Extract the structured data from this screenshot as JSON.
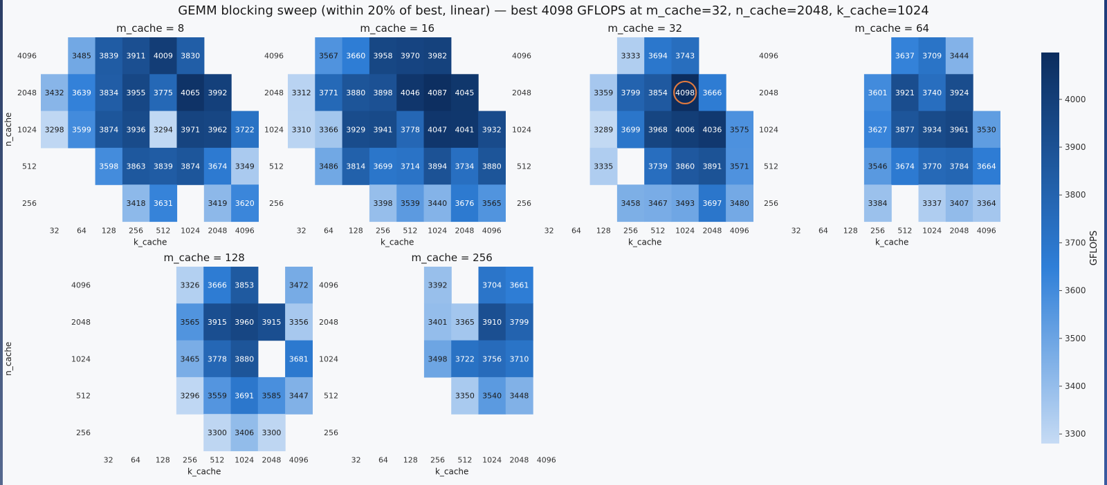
{
  "chart_data": {
    "type": "heatmap",
    "title": "GEMM blocking sweep (within 20% of best, linear) — best 4098 GFLOPS at m_cache=32, n_cache=2048, k_cache=1024",
    "xlabel": "k_cache",
    "ylabel": "n_cache",
    "k_values": [
      "32",
      "64",
      "128",
      "256",
      "512",
      "1024",
      "2048",
      "4096"
    ],
    "n_values": [
      "4096",
      "2048",
      "1024",
      "512",
      "256"
    ],
    "colorbar": {
      "label": "GFLOPS",
      "range": [
        3280,
        4098
      ],
      "ticks": [
        3300,
        3400,
        3500,
        3600,
        3700,
        3800,
        3900,
        4000
      ],
      "colors": [
        "#c6dbf4",
        "#2f7fd8",
        "#0c2d5e"
      ]
    },
    "highlight": {
      "m_cache": 32,
      "n_cache": "2048",
      "k_cache": "1024",
      "value": 4098,
      "color": "#e07a3f"
    },
    "panels": [
      {
        "title": "m_cache = 8",
        "cells": [
          [
            null,
            3485,
            3839,
            3911,
            4009,
            3830,
            null,
            null
          ],
          [
            3432,
            3639,
            3834,
            3955,
            3775,
            4065,
            3992,
            null
          ],
          [
            3298,
            3599,
            3874,
            3936,
            3294,
            3971,
            3962,
            3722
          ],
          [
            null,
            null,
            3598,
            3863,
            3839,
            3874,
            3674,
            3349
          ],
          [
            null,
            null,
            null,
            3418,
            3631,
            null,
            3419,
            3620
          ]
        ]
      },
      {
        "title": "m_cache = 16",
        "cells": [
          [
            null,
            3567,
            3660,
            3958,
            3970,
            3982,
            null,
            null
          ],
          [
            3312,
            3771,
            3880,
            3898,
            4046,
            4087,
            4045,
            null
          ],
          [
            3310,
            3366,
            3929,
            3941,
            3778,
            4047,
            4041,
            3932
          ],
          [
            null,
            3486,
            3814,
            3699,
            3714,
            3894,
            3734,
            3880
          ],
          [
            null,
            null,
            null,
            3398,
            3539,
            3440,
            3676,
            3565
          ]
        ]
      },
      {
        "title": "m_cache = 32",
        "cells": [
          [
            null,
            null,
            null,
            3333,
            3694,
            3743,
            null,
            null
          ],
          [
            null,
            null,
            3359,
            3799,
            3854,
            4098,
            3666,
            null
          ],
          [
            null,
            null,
            3289,
            3699,
            3968,
            4006,
            4036,
            3575
          ],
          [
            null,
            null,
            3335,
            null,
            3739,
            3860,
            3891,
            3571
          ],
          [
            null,
            null,
            null,
            3458,
            3467,
            3493,
            3697,
            3480
          ]
        ]
      },
      {
        "title": "m_cache = 64",
        "cells": [
          [
            null,
            null,
            null,
            null,
            3637,
            3709,
            3444,
            null
          ],
          [
            null,
            null,
            null,
            3601,
            3921,
            3740,
            3924,
            null
          ],
          [
            null,
            null,
            null,
            3627,
            3877,
            3934,
            3961,
            3530
          ],
          [
            null,
            null,
            null,
            3546,
            3674,
            3770,
            3784,
            3664
          ],
          [
            null,
            null,
            null,
            3384,
            null,
            3337,
            3407,
            3364
          ]
        ]
      },
      {
        "title": "m_cache = 128",
        "cells": [
          [
            null,
            null,
            null,
            3326,
            3666,
            3853,
            null,
            3472
          ],
          [
            null,
            null,
            null,
            3565,
            3915,
            3960,
            3915,
            3356
          ],
          [
            null,
            null,
            null,
            3465,
            3778,
            3880,
            null,
            3681
          ],
          [
            null,
            null,
            null,
            3296,
            3559,
            3691,
            3585,
            3447
          ],
          [
            null,
            null,
            null,
            null,
            3300,
            3406,
            3300,
            null
          ]
        ]
      },
      {
        "title": "m_cache = 256",
        "cells": [
          [
            null,
            null,
            null,
            3392,
            null,
            3704,
            3661,
            null
          ],
          [
            null,
            null,
            null,
            3401,
            3365,
            3910,
            3799,
            null
          ],
          [
            null,
            null,
            null,
            3498,
            3722,
            3756,
            3710,
            null
          ],
          [
            null,
            null,
            null,
            null,
            3350,
            3540,
            3448,
            null
          ],
          [
            null,
            null,
            null,
            null,
            null,
            null,
            null,
            null
          ]
        ]
      }
    ]
  }
}
